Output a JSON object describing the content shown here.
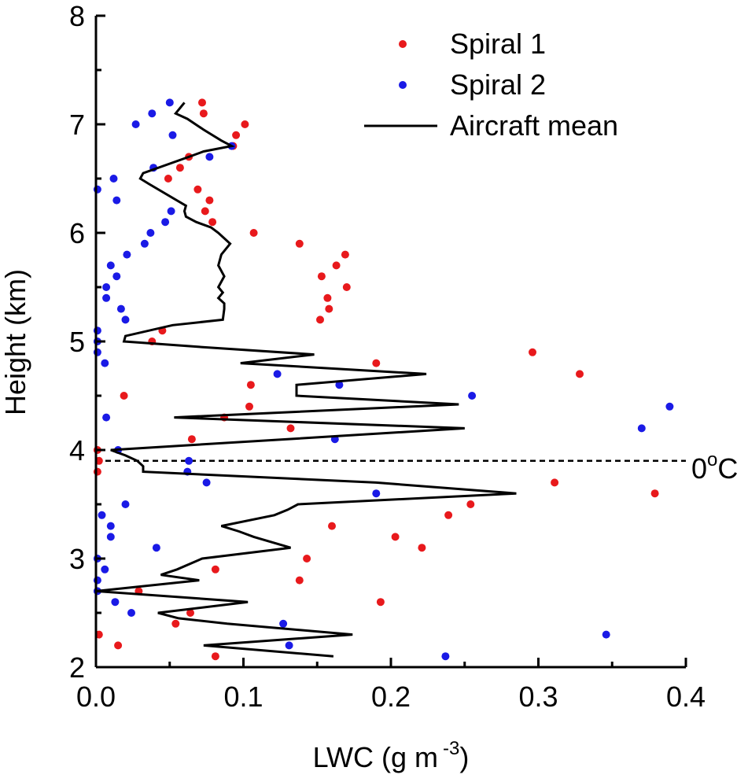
{
  "chart_data": {
    "type": "scatter",
    "title": "",
    "xlabel": "LWC (g m",
    "xlabel_sup": "-3",
    "xlabel_close": ")",
    "ylabel": "Height (km)",
    "xlim": [
      0.0,
      0.4
    ],
    "ylim": [
      2,
      8
    ],
    "x_ticks": [
      0.0,
      0.1,
      0.2,
      0.3,
      0.4
    ],
    "x_tick_labels": [
      "0.0",
      "0.1",
      "0.2",
      "0.3",
      "0.4"
    ],
    "y_ticks": [
      2,
      3,
      4,
      5,
      6,
      7,
      8
    ],
    "y_tick_labels": [
      "2",
      "3",
      "4",
      "5",
      "6",
      "7",
      "8"
    ],
    "grid": false,
    "legend_position": "top-right",
    "series": [
      {
        "name": "Spiral 1",
        "kind": "scatter",
        "color": "#e8191c",
        "points": [
          [
            0.072,
            7.2
          ],
          [
            0.073,
            7.1
          ],
          [
            0.101,
            7.0
          ],
          [
            0.095,
            6.9
          ],
          [
            0.093,
            6.8
          ],
          [
            0.063,
            6.7
          ],
          [
            0.057,
            6.6
          ],
          [
            0.049,
            6.5
          ],
          [
            0.069,
            6.4
          ],
          [
            0.077,
            6.3
          ],
          [
            0.074,
            6.2
          ],
          [
            0.079,
            6.1
          ],
          [
            0.107,
            6.0
          ],
          [
            0.138,
            5.9
          ],
          [
            0.169,
            5.8
          ],
          [
            0.163,
            5.7
          ],
          [
            0.153,
            5.6
          ],
          [
            0.17,
            5.5
          ],
          [
            0.157,
            5.4
          ],
          [
            0.158,
            5.3
          ],
          [
            0.152,
            5.2
          ],
          [
            0.045,
            5.1
          ],
          [
            0.038,
            5.0
          ],
          [
            0.296,
            4.9
          ],
          [
            0.19,
            4.8
          ],
          [
            0.328,
            4.7
          ],
          [
            0.105,
            4.6
          ],
          [
            0.019,
            4.5
          ],
          [
            0.104,
            4.4
          ],
          [
            0.087,
            4.3
          ],
          [
            0.132,
            4.2
          ],
          [
            0.065,
            4.1
          ],
          [
            0.001,
            4.0
          ],
          [
            0.002,
            3.9
          ],
          [
            0.001,
            3.8
          ],
          [
            0.311,
            3.7
          ],
          [
            0.379,
            3.6
          ],
          [
            0.254,
            3.5
          ],
          [
            0.239,
            3.4
          ],
          [
            0.16,
            3.3
          ],
          [
            0.203,
            3.2
          ],
          [
            0.221,
            3.1
          ],
          [
            0.143,
            3.0
          ],
          [
            0.081,
            2.9
          ],
          [
            0.138,
            2.8
          ],
          [
            0.029,
            2.7
          ],
          [
            0.193,
            2.6
          ],
          [
            0.064,
            2.5
          ],
          [
            0.054,
            2.4
          ],
          [
            0.002,
            2.3
          ],
          [
            0.015,
            2.2
          ],
          [
            0.081,
            2.1
          ]
        ]
      },
      {
        "name": "Spiral 2",
        "kind": "scatter",
        "color": "#1a1ae6",
        "points": [
          [
            0.05,
            7.2
          ],
          [
            0.038,
            7.1
          ],
          [
            0.027,
            7.0
          ],
          [
            0.052,
            6.9
          ],
          [
            0.092,
            6.8
          ],
          [
            0.077,
            6.7
          ],
          [
            0.039,
            6.6
          ],
          [
            0.012,
            6.5
          ],
          [
            0.001,
            6.4
          ],
          [
            0.014,
            6.3
          ],
          [
            0.051,
            6.2
          ],
          [
            0.047,
            6.1
          ],
          [
            0.037,
            6.0
          ],
          [
            0.033,
            5.9
          ],
          [
            0.021,
            5.8
          ],
          [
            0.01,
            5.7
          ],
          [
            0.014,
            5.6
          ],
          [
            0.007,
            5.5
          ],
          [
            0.007,
            5.4
          ],
          [
            0.017,
            5.3
          ],
          [
            0.02,
            5.2
          ],
          [
            0.001,
            5.1
          ],
          [
            0.001,
            5.0
          ],
          [
            0.001,
            4.9
          ],
          [
            0.006,
            4.8
          ],
          [
            0.123,
            4.7
          ],
          [
            0.165,
            4.6
          ],
          [
            0.255,
            4.5
          ],
          [
            0.389,
            4.4
          ],
          [
            0.007,
            4.3
          ],
          [
            0.37,
            4.2
          ],
          [
            0.162,
            4.1
          ],
          [
            0.015,
            4.0
          ],
          [
            0.063,
            3.9
          ],
          [
            0.062,
            3.8
          ],
          [
            0.075,
            3.7
          ],
          [
            0.19,
            3.6
          ],
          [
            0.02,
            3.5
          ],
          [
            0.004,
            3.4
          ],
          [
            0.01,
            3.3
          ],
          [
            0.01,
            3.2
          ],
          [
            0.041,
            3.1
          ],
          [
            0.001,
            3.0
          ],
          [
            0.006,
            2.9
          ],
          [
            0.001,
            2.8
          ],
          [
            0.001,
            2.7
          ],
          [
            0.013,
            2.6
          ],
          [
            0.024,
            2.5
          ],
          [
            0.127,
            2.4
          ],
          [
            0.346,
            2.3
          ],
          [
            0.131,
            2.2
          ],
          [
            0.237,
            2.1
          ]
        ]
      },
      {
        "name": "Aircraft mean",
        "kind": "line",
        "color": "#000000",
        "points": [
          [
            0.06,
            7.2
          ],
          [
            0.054,
            7.1
          ],
          [
            0.062,
            7.05
          ],
          [
            0.073,
            6.95
          ],
          [
            0.085,
            6.85
          ],
          [
            0.092,
            6.8
          ],
          [
            0.073,
            6.75
          ],
          [
            0.063,
            6.7
          ],
          [
            0.032,
            6.55
          ],
          [
            0.03,
            6.5
          ],
          [
            0.036,
            6.45
          ],
          [
            0.061,
            6.25
          ],
          [
            0.06,
            6.2
          ],
          [
            0.061,
            6.15
          ],
          [
            0.068,
            6.1
          ],
          [
            0.078,
            6.05
          ],
          [
            0.083,
            6.0
          ],
          [
            0.091,
            5.9
          ],
          [
            0.085,
            5.8
          ],
          [
            0.083,
            5.7
          ],
          [
            0.087,
            5.6
          ],
          [
            0.083,
            5.5
          ],
          [
            0.086,
            5.45
          ],
          [
            0.083,
            5.4
          ],
          [
            0.087,
            5.35
          ],
          [
            0.087,
            5.3
          ],
          [
            0.086,
            5.2
          ],
          [
            0.052,
            5.15
          ],
          [
            0.02,
            5.05
          ],
          [
            0.019,
            5.0
          ],
          [
            0.07,
            4.95
          ],
          [
            0.148,
            4.88
          ],
          [
            0.098,
            4.8
          ],
          [
            0.224,
            4.7
          ],
          [
            0.136,
            4.6
          ],
          [
            0.136,
            4.5
          ],
          [
            0.246,
            4.42
          ],
          [
            0.053,
            4.3
          ],
          [
            0.25,
            4.2
          ],
          [
            0.01,
            4.0
          ],
          [
            0.02,
            3.95
          ],
          [
            0.028,
            3.9
          ],
          [
            0.032,
            3.85
          ],
          [
            0.032,
            3.8
          ],
          [
            0.19,
            3.7
          ],
          [
            0.285,
            3.6
          ],
          [
            0.137,
            3.5
          ],
          [
            0.13,
            3.45
          ],
          [
            0.121,
            3.4
          ],
          [
            0.085,
            3.3
          ],
          [
            0.097,
            3.25
          ],
          [
            0.107,
            3.2
          ],
          [
            0.132,
            3.1
          ],
          [
            0.072,
            3.0
          ],
          [
            0.055,
            2.9
          ],
          [
            0.044,
            2.85
          ],
          [
            0.07,
            2.8
          ],
          [
            0.0,
            2.7
          ],
          [
            0.103,
            2.6
          ],
          [
            0.042,
            2.5
          ],
          [
            0.056,
            2.45
          ],
          [
            0.089,
            2.4
          ],
          [
            0.174,
            2.3
          ],
          [
            0.073,
            2.2
          ],
          [
            0.161,
            2.1
          ]
        ]
      }
    ],
    "reference_line": {
      "y": 3.9,
      "style": "dashed",
      "label": "0",
      "label_sup": "o",
      "label_tail": "C"
    }
  }
}
